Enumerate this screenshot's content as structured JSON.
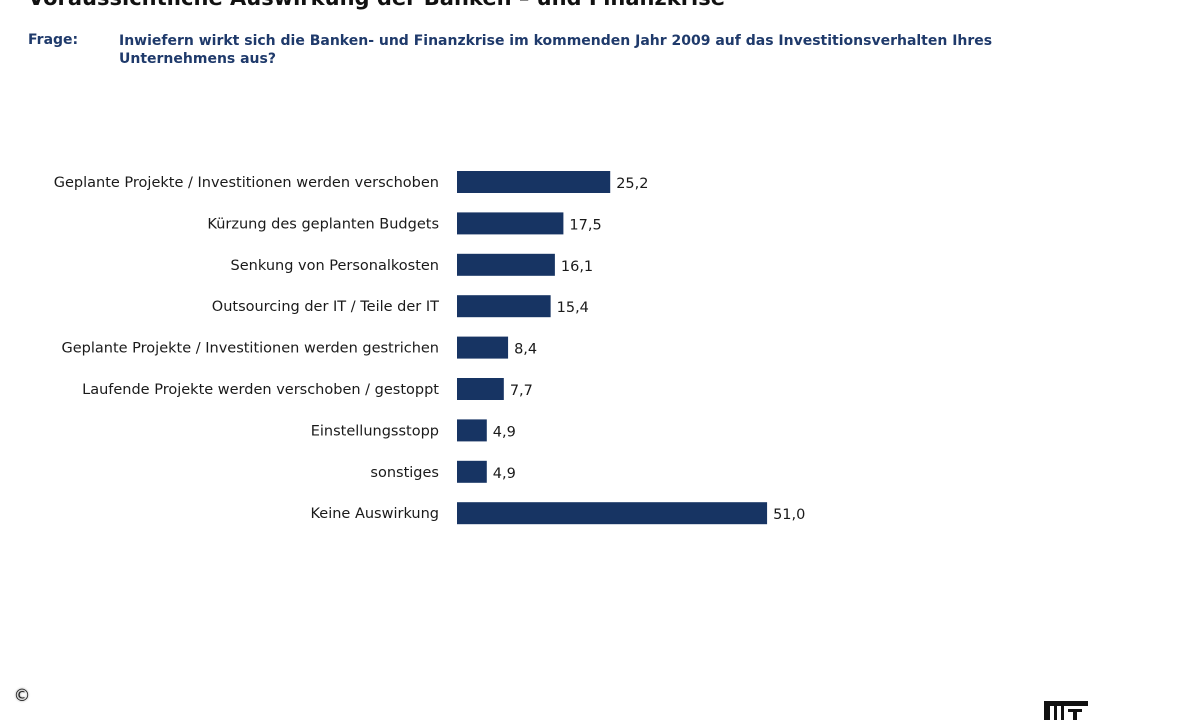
{
  "title": "Voraussichtliche Auswirkung der Banken – und Finanzkrise",
  "question": {
    "label": "Frage:",
    "text": "Inwiefern wirkt sich die Banken- und Finanzkrise im kommenden Jahr 2009 auf das Investitionsverhalten Ihres Unternehmens aus?"
  },
  "copyright_symbol": "©",
  "colors": {
    "bar": "#173463",
    "accent_text": "#1f3a6b"
  },
  "icons": {
    "copyright": "copyright-icon",
    "publisher_logo": "logo-icon"
  },
  "chart_data": {
    "type": "bar",
    "orientation": "horizontal",
    "categories": [
      "Geplante Projekte / Investitionen werden verschoben",
      "Kürzung des geplanten Budgets",
      "Senkung von Personalkosten",
      "Outsourcing der IT / Teile der IT",
      "Geplante Projekte / Investitionen werden gestrichen",
      "Laufende Projekte werden verschoben / gestoppt",
      "Einstellungsstopp",
      "sonstiges",
      "Keine Auswirkung"
    ],
    "values": [
      25.2,
      17.5,
      16.1,
      15.4,
      8.4,
      7.7,
      4.9,
      4.9,
      51.0
    ],
    "value_labels": [
      "25,2",
      "17,5",
      "16,1",
      "15,4",
      "8,4",
      "7,7",
      "4,9",
      "4,9",
      "51,0"
    ],
    "xlim": [
      0,
      51.0
    ],
    "grid": false,
    "legend": "none"
  }
}
